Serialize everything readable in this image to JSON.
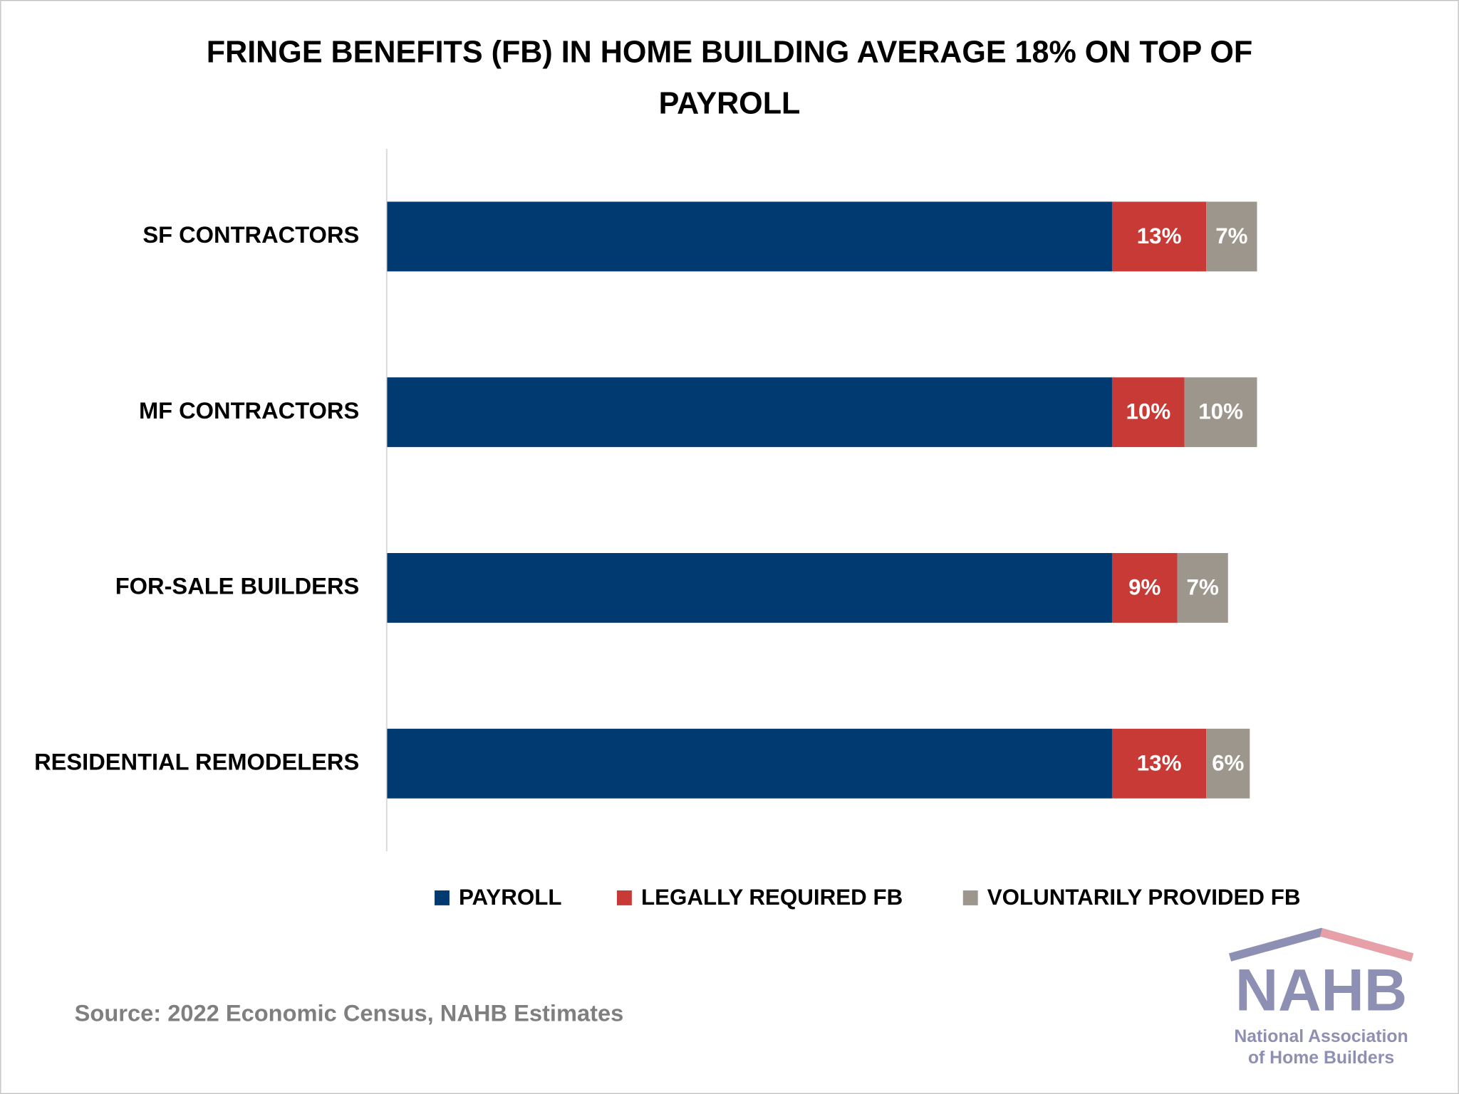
{
  "chart_data": {
    "type": "stacked-bar-horizontal",
    "title": "FRINGE BENEFITS (FB) IN HOME BUILDING AVERAGE 18% ON TOP OF PAYROLL",
    "categories": [
      "SF CONTRACTORS",
      "MF CONTRACTORS",
      "FOR-SALE BUILDERS",
      "RESIDENTIAL REMODELERS"
    ],
    "series": [
      {
        "name": "PAYROLL",
        "color": "#003a70",
        "values": [
          100,
          100,
          100,
          100
        ]
      },
      {
        "name": "LEGALLY REQUIRED FB",
        "color": "#c73a35",
        "values": [
          13,
          10,
          9,
          13
        ],
        "value_labels": [
          "13%",
          "10%",
          "9%",
          "13%"
        ]
      },
      {
        "name": "VOLUNTARILY PROVIDED FB",
        "color": "#9d968c",
        "values": [
          7,
          10,
          7,
          6
        ],
        "value_labels": [
          "7%",
          "10%",
          "7%",
          "6%"
        ]
      }
    ],
    "xlim": [
      0,
      125
    ],
    "legend": "bottom",
    "source": "Source: 2022 Economic Census, NAHB Estimates"
  },
  "logo": {
    "mark": "NAHB",
    "line1": "National Association",
    "line2": "of Home Builders"
  }
}
